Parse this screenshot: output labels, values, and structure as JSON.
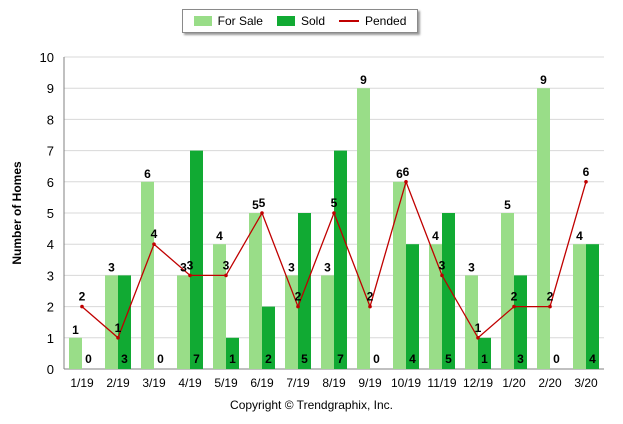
{
  "legend": {
    "for_sale": "For Sale",
    "sold": "Sold",
    "pended": "Pended"
  },
  "copyright": "Copyright © Trendgraphix, Inc.",
  "chart_data": {
    "type": "bar",
    "categories": [
      "1/19",
      "2/19",
      "3/19",
      "4/19",
      "5/19",
      "6/19",
      "7/19",
      "8/19",
      "9/19",
      "10/19",
      "11/19",
      "12/19",
      "1/20",
      "2/20",
      "3/20"
    ],
    "series": [
      {
        "name": "For Sale",
        "type": "bar",
        "color": "#99dd88",
        "values": [
          1,
          3,
          6,
          3,
          4,
          5,
          3,
          3,
          9,
          6,
          4,
          3,
          5,
          9,
          4
        ]
      },
      {
        "name": "Sold",
        "type": "bar",
        "color": "#11aa33",
        "values": [
          0,
          3,
          0,
          7,
          1,
          2,
          5,
          7,
          0,
          4,
          5,
          1,
          3,
          0,
          4
        ]
      },
      {
        "name": "Pended",
        "type": "line",
        "color": "#c00000",
        "values": [
          2,
          1,
          4,
          3,
          3,
          5,
          2,
          5,
          2,
          6,
          3,
          1,
          2,
          2,
          6
        ]
      }
    ],
    "ylabel": "Number of Homes",
    "ylim": [
      0,
      10
    ],
    "yticks": [
      0,
      1,
      2,
      3,
      4,
      5,
      6,
      7,
      8,
      9,
      10
    ],
    "grid": true,
    "legend_position": "top-center"
  }
}
